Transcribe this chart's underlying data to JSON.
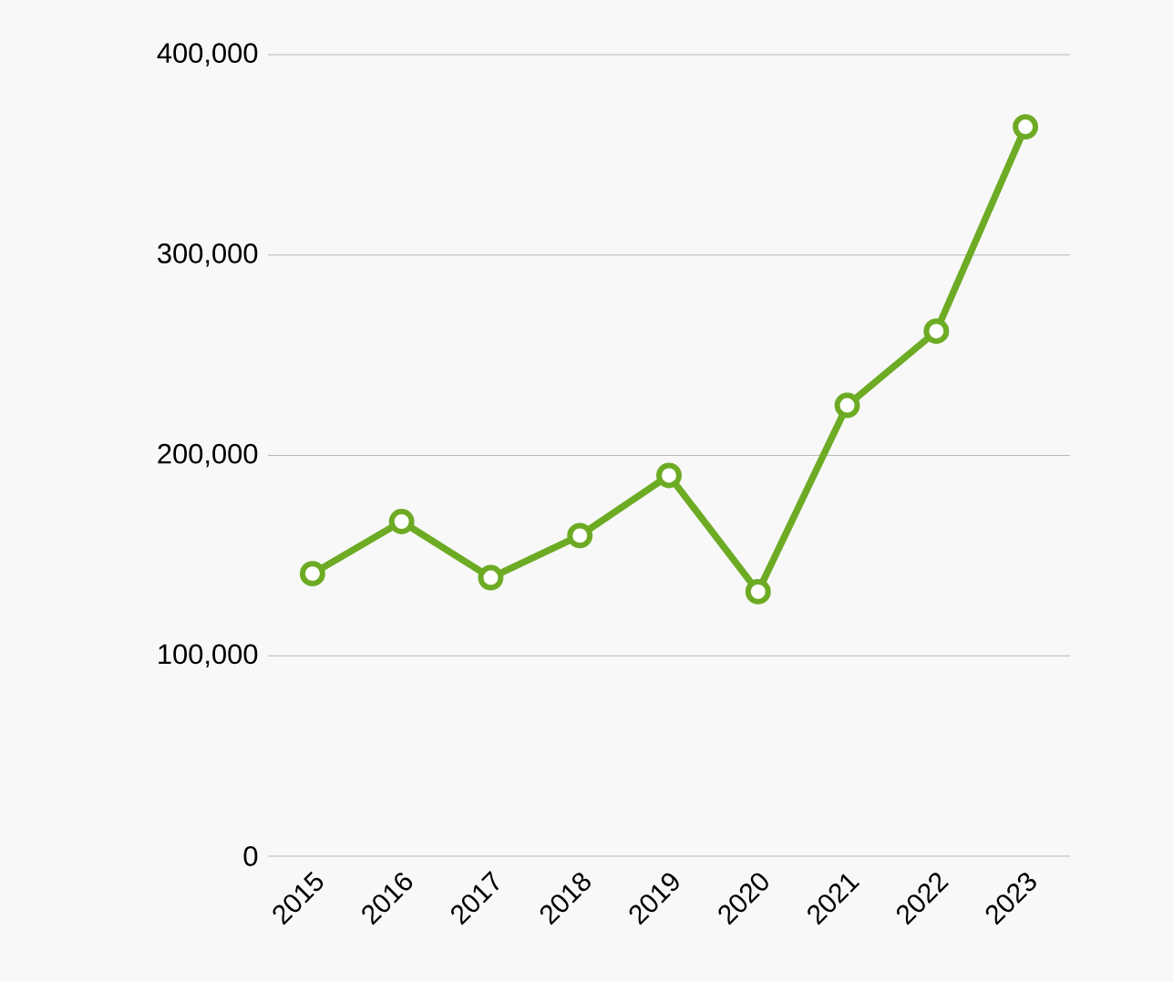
{
  "chart_data": {
    "type": "line",
    "categories": [
      "2015",
      "2016",
      "2017",
      "2018",
      "2019",
      "2020",
      "2021",
      "2022",
      "2023"
    ],
    "series": [
      {
        "color": "#6dab24",
        "values": [
          141000,
          167000,
          139000,
          160000,
          190000,
          132000,
          225000,
          262000,
          364000
        ]
      }
    ],
    "ylim": [
      0,
      400000
    ],
    "yticks": [
      {
        "value": 0,
        "label": "0"
      },
      {
        "value": 100000,
        "label": "100,000"
      },
      {
        "value": 200000,
        "label": "200,000"
      },
      {
        "value": 300000,
        "label": "300,000"
      },
      {
        "value": 400000,
        "label": "400,000"
      }
    ],
    "grid": "y",
    "marker": "circle",
    "line_style": "solid"
  }
}
